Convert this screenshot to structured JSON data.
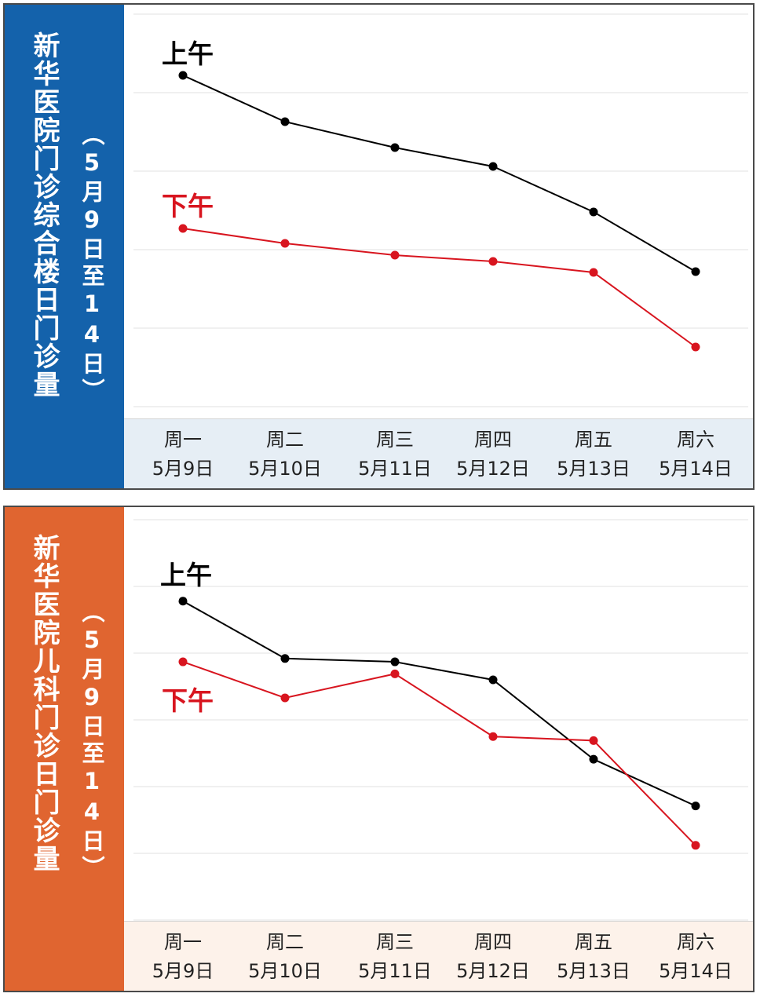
{
  "colors": {
    "morning": "#000000",
    "afternoon": "#d8151f",
    "panel1_accent": "#1462ab",
    "panel2_accent": "#e06530"
  },
  "panels": [
    {
      "title": "新华医院门诊综合楼日门诊量",
      "date_range": "（5月9日至14日）"
    },
    {
      "title": "新华医院儿科门诊日门诊量",
      "date_range": "（5月9日至14日）"
    }
  ],
  "chart_data": [
    {
      "type": "line",
      "title": "新华医院门诊综合楼日门诊量",
      "subtitle": "（5月9日至14日）",
      "categories": [
        {
          "weekday": "周一",
          "date": "5月9日"
        },
        {
          "weekday": "周二",
          "date": "5月10日"
        },
        {
          "weekday": "周三",
          "date": "5月11日"
        },
        {
          "weekday": "周四",
          "date": "5月12日"
        },
        {
          "weekday": "周五",
          "date": "5月13日"
        },
        {
          "weekday": "周六",
          "date": "5月14日"
        }
      ],
      "series": [
        {
          "name": "上午",
          "color": "#000000",
          "values": [
            4.22,
            3.63,
            3.3,
            3.06,
            2.48,
            1.72
          ]
        },
        {
          "name": "下午",
          "color": "#d8151f",
          "values": [
            2.27,
            2.08,
            1.93,
            1.85,
            1.71,
            0.76
          ]
        }
      ],
      "ylim": [
        0,
        5
      ],
      "grid": true,
      "legend": "labels near first points"
    },
    {
      "type": "line",
      "title": "新华医院儿科门诊日门诊量",
      "subtitle": "（5月9日至14日）",
      "categories": [
        {
          "weekday": "周一",
          "date": "5月9日"
        },
        {
          "weekday": "周二",
          "date": "5月10日"
        },
        {
          "weekday": "周三",
          "date": "5月11日"
        },
        {
          "weekday": "周四",
          "date": "5月12日"
        },
        {
          "weekday": "周五",
          "date": "5月13日"
        },
        {
          "weekday": "周六",
          "date": "5月14日"
        }
      ],
      "series": [
        {
          "name": "上午",
          "color": "#000000",
          "values": [
            4.78,
            3.92,
            3.87,
            3.6,
            2.41,
            1.71
          ]
        },
        {
          "name": "下午",
          "color": "#d8151f",
          "values": [
            3.87,
            3.33,
            3.69,
            2.75,
            2.69,
            1.12
          ]
        }
      ],
      "ylim": [
        0,
        6
      ],
      "grid": true,
      "legend": "labels near first points"
    }
  ]
}
